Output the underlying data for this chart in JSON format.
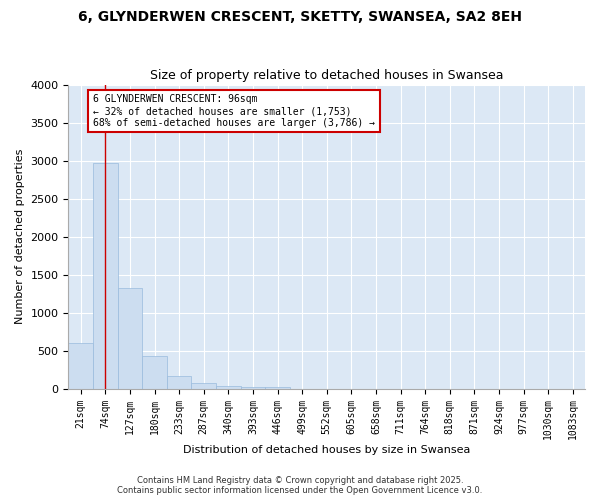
{
  "title1": "6, GLYNDERWEN CRESCENT, SKETTY, SWANSEA, SA2 8EH",
  "title2": "Size of property relative to detached houses in Swansea",
  "xlabel": "Distribution of detached houses by size in Swansea",
  "ylabel": "Number of detached properties",
  "categories": [
    "21sqm",
    "74sqm",
    "127sqm",
    "180sqm",
    "233sqm",
    "287sqm",
    "340sqm",
    "393sqm",
    "446sqm",
    "499sqm",
    "552sqm",
    "605sqm",
    "658sqm",
    "711sqm",
    "764sqm",
    "818sqm",
    "871sqm",
    "924sqm",
    "977sqm",
    "1030sqm",
    "1083sqm"
  ],
  "values": [
    600,
    2970,
    1330,
    430,
    170,
    80,
    40,
    20,
    15,
    0,
    0,
    0,
    0,
    0,
    0,
    0,
    0,
    0,
    0,
    0,
    0
  ],
  "bar_color": "#ccddf0",
  "bar_edge_color": "#99bbdd",
  "vline_x_index": 1,
  "vline_color": "#cc0000",
  "annotation_text": "6 GLYNDERWEN CRESCENT: 96sqm\n← 32% of detached houses are smaller (1,753)\n68% of semi-detached houses are larger (3,786) →",
  "annotation_box_facecolor": "#ffffff",
  "annotation_box_edgecolor": "#cc0000",
  "ylim": [
    0,
    4000
  ],
  "yticks": [
    0,
    500,
    1000,
    1500,
    2000,
    2500,
    3000,
    3500,
    4000
  ],
  "background_color": "#dce8f5",
  "grid_color": "#ffffff",
  "footer1": "Contains HM Land Registry data © Crown copyright and database right 2025.",
  "footer2": "Contains public sector information licensed under the Open Government Licence v3.0.",
  "title_fontsize": 10,
  "subtitle_fontsize": 9,
  "tick_fontsize": 6,
  "ylabel_fontsize": 8,
  "xlabel_fontsize": 8,
  "footer_fontsize": 6,
  "annotation_fontsize": 7
}
